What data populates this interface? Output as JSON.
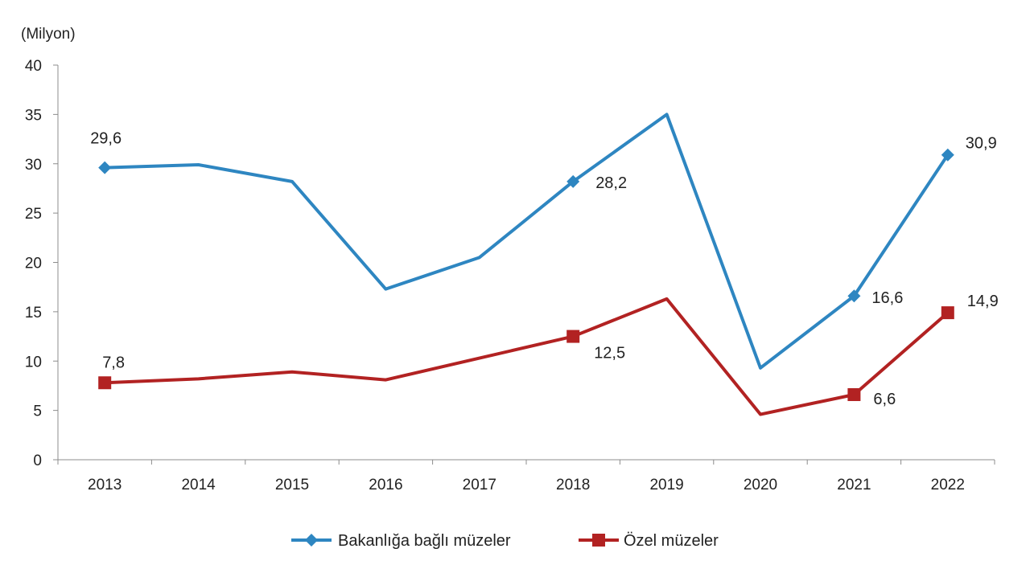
{
  "chart_data": {
    "type": "line",
    "categories": [
      "2013",
      "2014",
      "2015",
      "2016",
      "2017",
      "2018",
      "2019",
      "2020",
      "2021",
      "2022"
    ],
    "y_unit_label": "(Milyon)",
    "ylim": [
      0,
      40
    ],
    "yticks": [
      0,
      5,
      10,
      15,
      20,
      25,
      30,
      35,
      40
    ],
    "ytick_labels": [
      "0",
      "5",
      "10",
      "15",
      "20",
      "25",
      "30",
      "35",
      "40"
    ],
    "grid": false,
    "legend_position": "bottom",
    "series": [
      {
        "name": "Bakanlığa bağlı müzeler",
        "color": "#2E86C1",
        "marker": "diamond",
        "values": [
          29.6,
          29.9,
          28.2,
          17.3,
          20.5,
          28.2,
          35.0,
          9.3,
          16.6,
          30.9
        ],
        "data_labels": [
          {
            "index": 0,
            "text": "29,6"
          },
          {
            "index": 5,
            "text": "28,2"
          },
          {
            "index": 8,
            "text": "16,6"
          },
          {
            "index": 9,
            "text": "30,9"
          }
        ]
      },
      {
        "name": "Özel müzeler",
        "color": "#B22222",
        "marker": "square",
        "values": [
          7.8,
          8.2,
          8.9,
          8.1,
          10.3,
          12.5,
          16.3,
          4.6,
          6.6,
          14.9
        ],
        "data_labels": [
          {
            "index": 0,
            "text": "7,8"
          },
          {
            "index": 5,
            "text": "12,5"
          },
          {
            "index": 8,
            "text": "6,6"
          },
          {
            "index": 9,
            "text": "14,9"
          }
        ]
      }
    ]
  }
}
